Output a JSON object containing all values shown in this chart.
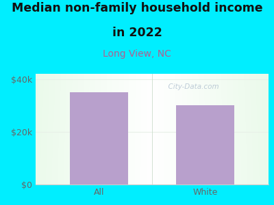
{
  "categories": [
    "All",
    "White"
  ],
  "values": [
    35000,
    30000
  ],
  "bar_color": "#b8a0cc",
  "title_line1": "Median non-family household income",
  "title_line2": "in 2022",
  "subtitle": "Long View, NC",
  "subtitle_color": "#b06090",
  "title_color": "#111111",
  "title_fontsize": 12.5,
  "subtitle_fontsize": 10,
  "background_color": "#00eeff",
  "ylim": [
    0,
    42000
  ],
  "yticks": [
    0,
    20000,
    40000
  ],
  "ytick_labels": [
    "$0",
    "$20k",
    "$40k"
  ],
  "tick_fontsize": 9,
  "tick_color": "#666666",
  "watermark": "  City-Data.com",
  "watermark_color": "#aabbcc",
  "grid_color": "#e0ece0",
  "bar_gap_color": "#c8e8c0"
}
